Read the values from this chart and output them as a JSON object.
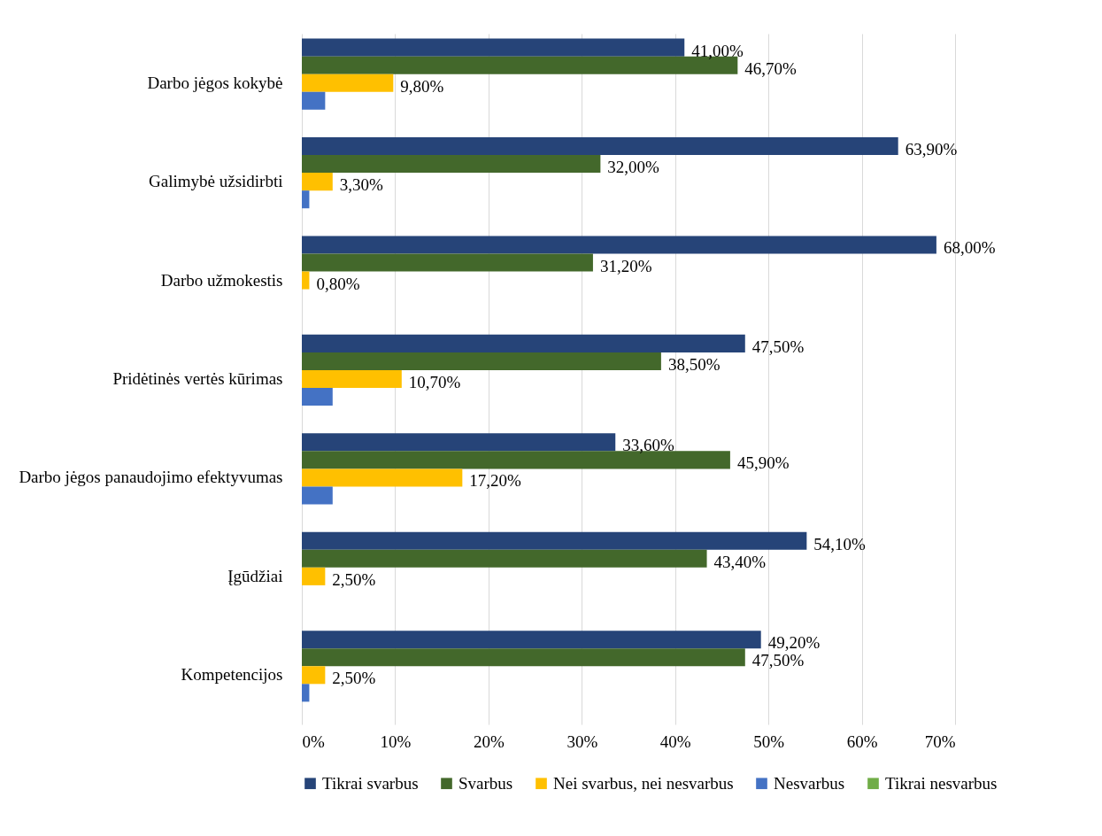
{
  "chart_data": {
    "type": "bar",
    "orientation": "horizontal",
    "categories": [
      "Darbo jėgos kokybė",
      "Galimybė užsidirbti",
      "Darbo užmokestis",
      "Pridėtinės vertės kūrimas",
      "Darbo jėgos panaudojimo efektyvumas",
      "Įgūdžiai",
      "Kompetencijos"
    ],
    "series": [
      {
        "name": "Tikrai svarbus",
        "color": "#264478",
        "values": [
          41.0,
          63.9,
          68.0,
          47.5,
          33.6,
          54.1,
          49.2
        ],
        "value_labels": [
          "41,00%",
          "63,90%",
          "68,00%",
          "47,50%",
          "33,60%",
          "54,10%",
          "49,20%"
        ]
      },
      {
        "name": "Svarbus",
        "color": "#43682b",
        "values": [
          46.7,
          32.0,
          31.2,
          38.5,
          45.9,
          43.4,
          47.5
        ],
        "value_labels": [
          "46,70%",
          "32,00%",
          "31,20%",
          "38,50%",
          "45,90%",
          "43,40%",
          "47,50%"
        ]
      },
      {
        "name": "Nei svarbus, nei nesvarbus",
        "color": "#ffc000",
        "values": [
          9.8,
          3.3,
          0.8,
          10.7,
          17.2,
          2.5,
          2.5
        ],
        "value_labels": [
          "9,80%",
          "3,30%",
          "0,80%",
          "10,70%",
          "17,20%",
          "2,50%",
          "2,50%"
        ]
      },
      {
        "name": "Nesvarbus",
        "color": "#4472c4",
        "values": [
          2.5,
          0.8,
          0,
          3.3,
          3.3,
          0,
          0.8
        ]
      },
      {
        "name": "Tikrai nesvarbus",
        "color": "#70ad47",
        "values": [
          0,
          0,
          0,
          0,
          0,
          0,
          0
        ]
      }
    ],
    "xlim": [
      0,
      70
    ],
    "xticks": [
      {
        "value": 0,
        "label": "0%"
      },
      {
        "value": 10,
        "label": "10%"
      },
      {
        "value": 20,
        "label": "20%"
      },
      {
        "value": 30,
        "label": "30%"
      },
      {
        "value": 40,
        "label": "40%"
      },
      {
        "value": 50,
        "label": "50%"
      },
      {
        "value": 60,
        "label": "60%"
      },
      {
        "value": 70,
        "label": "70%"
      }
    ],
    "grid": "x",
    "legend": "bottom"
  }
}
